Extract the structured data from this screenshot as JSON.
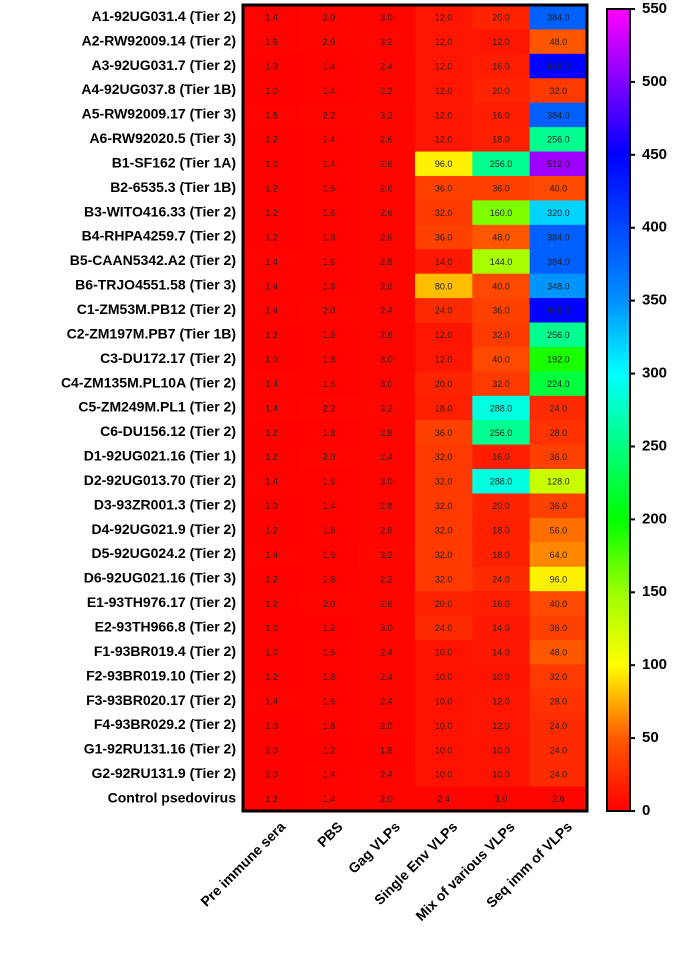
{
  "chart_data": {
    "type": "heatmap",
    "rows": [
      "A1-92UG031.4 (Tier 2)",
      "A2-RW92009.14 (Tier 2)",
      "A3-92UG031.7 (Tier 2)",
      "A4-92UG037.8 (Tier 1B)",
      "A5-RW92009.17 (Tier 3)",
      "A6-RW92020.5 (Tier 3)",
      "B1-SF162 (Tier 1A)",
      "B2-6535.3 (Tier 1B)",
      "B3-WITO416.33 (Tier 2)",
      "B4-RHPA4259.7 (Tier 2)",
      "B5-CAAN5342.A2 (Tier 2)",
      "B6-TRJO4551.58 (Tier 3)",
      "C1-ZM53M.PB12 (Tier 2)",
      "C2-ZM197M.PB7 (Tier 1B)",
      "C3-DU172.17 (Tier 2)",
      "C4-ZM135M.PL10A (Tier 2)",
      "C5-ZM249M.PL1 (Tier 2)",
      "C6-DU156.12 (Tier 2)",
      "D1-92UG021.16 (Tier 1)",
      "D2-92UG013.70 (Tier 2)",
      "D3-93ZR001.3 (Tier 2)",
      "D4-92UG021.9 (Tier 2)",
      "D5-92UG024.2 (Tier 2)",
      "D6-92UG021.16 (Tier 3)",
      "E1-93TH976.17 (Tier 2)",
      "E2-93TH966.8 (Tier 2)",
      "F1-93BR019.4 (Tier 2)",
      "F2-93BR019.10 (Tier 2)",
      "F3-93BR020.17 (Tier 2)",
      "F4-93BR029.2 (Tier 2)",
      "G1-92RU131.16 (Tier 2)",
      "G2-92RU131.9 (Tier 2)",
      "Control psedovirus"
    ],
    "columns": [
      "Pre immune sera",
      "PBS",
      "Gag VLPs",
      "Single Env VLPs",
      "Mix of various VLPs",
      "Seq imm of VLPs"
    ],
    "values": [
      [
        1.4,
        2,
        3,
        12,
        20,
        384
      ],
      [
        1.6,
        2,
        3.2,
        12,
        12,
        48
      ],
      [
        1,
        1.4,
        2.4,
        12,
        16,
        448
      ],
      [
        1,
        1.4,
        2.2,
        12,
        20,
        32
      ],
      [
        1.8,
        2.2,
        3.2,
        12,
        16,
        384
      ],
      [
        1.2,
        1.4,
        2.6,
        12,
        18,
        256
      ],
      [
        1,
        1.4,
        2.6,
        96,
        256,
        512
      ],
      [
        1.2,
        1.6,
        2.6,
        36,
        36,
        40
      ],
      [
        1.2,
        1.6,
        2.6,
        32,
        160,
        320
      ],
      [
        1.2,
        1.8,
        2.6,
        36,
        48,
        384
      ],
      [
        1.4,
        1.6,
        2.8,
        14,
        144,
        384
      ],
      [
        1.4,
        1.8,
        2.6,
        80,
        40,
        348
      ],
      [
        1.4,
        2,
        2.4,
        24,
        36,
        448
      ],
      [
        1.2,
        1.8,
        2.6,
        12,
        32,
        256
      ],
      [
        1,
        1.8,
        3,
        12,
        40,
        192
      ],
      [
        1.4,
        1.6,
        3,
        20,
        32,
        224
      ],
      [
        1.4,
        2.2,
        3.2,
        18,
        288,
        24
      ],
      [
        1.2,
        1.8,
        2.8,
        36,
        256,
        28
      ],
      [
        1.2,
        2,
        2.4,
        32,
        16,
        36
      ],
      [
        1.4,
        1.6,
        3,
        32,
        288,
        128
      ],
      [
        1,
        1.4,
        2.8,
        32,
        20,
        36
      ],
      [
        1.2,
        1.8,
        2.8,
        32,
        18,
        56
      ],
      [
        1.4,
        1.6,
        3.2,
        32,
        18,
        64
      ],
      [
        1.2,
        1.8,
        2.2,
        32,
        24,
        96
      ],
      [
        1.2,
        2,
        2.6,
        20,
        16,
        40
      ],
      [
        1,
        1.2,
        3,
        24,
        14,
        36
      ],
      [
        1,
        1.6,
        2.4,
        10,
        14,
        48
      ],
      [
        1.2,
        1.8,
        2.4,
        10,
        10,
        32
      ],
      [
        1.4,
        1.6,
        2.4,
        10,
        12,
        28
      ],
      [
        1,
        1.8,
        2,
        10,
        12,
        24
      ],
      [
        1,
        1.2,
        1.8,
        10,
        10,
        24
      ],
      [
        1,
        1.4,
        2.4,
        10,
        10,
        24
      ],
      [
        1.2,
        1.4,
        2,
        2.4,
        3,
        2.6
      ]
    ],
    "value_labels": [
      [
        "1.4",
        "2.0",
        "3.0",
        "12.0",
        "20.0",
        "384.0"
      ],
      [
        "1.6",
        "2.0",
        "3.2",
        "12.0",
        "12.0",
        "48.0"
      ],
      [
        "1.0",
        "1.4",
        "2.4",
        "12.0",
        "16.0",
        "448.0"
      ],
      [
        "1.0",
        "1.4",
        "2.2",
        "12.0",
        "20.0",
        "32.0"
      ],
      [
        "1.8",
        "2.2",
        "3.2",
        "12.0",
        "16.0",
        "384.0"
      ],
      [
        "1.2",
        "1.4",
        "2.6",
        "12.0",
        "18.0",
        "256.0"
      ],
      [
        "1.0",
        "1.4",
        "2.6",
        "96.0",
        "256.0",
        "512.0"
      ],
      [
        "1.2",
        "1.6",
        "2.6",
        "36.0",
        "36.0",
        "40.0"
      ],
      [
        "1.2",
        "1.6",
        "2.6",
        "32.0",
        "160.0",
        "320.0"
      ],
      [
        "1.2",
        "1.8",
        "2.6",
        "36.0",
        "48.0",
        "384.0"
      ],
      [
        "1.4",
        "1.6",
        "2.8",
        "14.0",
        "144.0",
        "384.0"
      ],
      [
        "1.4",
        "1.8",
        "2.6",
        "80.0",
        "40.0",
        "348.0"
      ],
      [
        "1.4",
        "2.0",
        "2.4",
        "24.0",
        "36.0",
        "448.0"
      ],
      [
        "1.2",
        "1.8",
        "2.6",
        "12.0",
        "32.0",
        "256.0"
      ],
      [
        "1.0",
        "1.8",
        "3.0",
        "12.0",
        "40.0",
        "192.0"
      ],
      [
        "1.4",
        "1.6",
        "3.0",
        "20.0",
        "32.0",
        "224.0"
      ],
      [
        "1.4",
        "2.2",
        "3.2",
        "18.0",
        "288.0",
        "24.0"
      ],
      [
        "1.2",
        "1.8",
        "2.8",
        "36.0",
        "256.0",
        "28.0"
      ],
      [
        "1.2",
        "2.0",
        "2.4",
        "32.0",
        "16.0",
        "36.0"
      ],
      [
        "1.4",
        "1.6",
        "3.0",
        "32.0",
        "288.0",
        "128.0"
      ],
      [
        "1.0",
        "1.4",
        "2.8",
        "32.0",
        "20.0",
        "36.0"
      ],
      [
        "1.2",
        "1.8",
        "2.8",
        "32.0",
        "18.0",
        "56.0"
      ],
      [
        "1.4",
        "1.6",
        "3.2",
        "32.0",
        "18.0",
        "64.0"
      ],
      [
        "1.2",
        "1.8",
        "2.2",
        "32.0",
        "24.0",
        "96.0"
      ],
      [
        "1.2",
        "2.0",
        "2.6",
        "20.0",
        "16.0",
        "40.0"
      ],
      [
        "1.0",
        "1.2",
        "3.0",
        "24.0",
        "14.0",
        "36.0"
      ],
      [
        "1.0",
        "1.6",
        "2.4",
        "10.0",
        "14.0",
        "48.0"
      ],
      [
        "1.2",
        "1.8",
        "2.4",
        "10.0",
        "10.0",
        "32.0"
      ],
      [
        "1.4",
        "1.6",
        "2.4",
        "10.0",
        "12.0",
        "28.0"
      ],
      [
        "1.0",
        "1.8",
        "2.0",
        "10.0",
        "12.0",
        "24.0"
      ],
      [
        "1.0",
        "1.2",
        "1.8",
        "10.0",
        "10.0",
        "24.0"
      ],
      [
        "1.0",
        "1.4",
        "2.4",
        "10.0",
        "10.0",
        "24.0"
      ],
      [
        "1.2",
        "1.4",
        "2.0",
        "2.4",
        "3.0",
        "2.6"
      ]
    ],
    "zlim": [
      0,
      550
    ],
    "zticks": [
      0,
      50,
      100,
      150,
      200,
      250,
      300,
      350,
      400,
      450,
      500,
      550
    ],
    "colorscale": [
      "#ff0000",
      "#ff5a00",
      "#ffff00",
      "#9cff00",
      "#00ff00",
      "#00ff80",
      "#00ffff",
      "#0090ff",
      "#0048ff",
      "#0000ff",
      "#8000ff",
      "#ff00ff"
    ]
  }
}
